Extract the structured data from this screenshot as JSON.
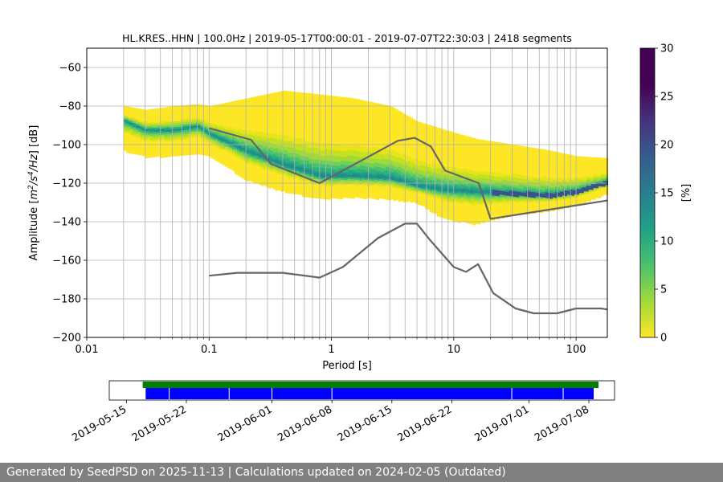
{
  "chart_data": [
    {
      "type": "heatmap",
      "title": "HL.KRES..HHN | 100.0Hz | 2019-05-17T00:00:01 - 2019-07-07T22:30:03 | 2418 segments",
      "xlabel": "Period [s]",
      "ylabel": "Amplitude [$m^2/s^4/Hz$] [dB]",
      "xscale": "log",
      "xlim": [
        0.01,
        180
      ],
      "ylim": [
        -200,
        -50
      ],
      "xticks": [
        "0.01",
        "0.1",
        "1",
        "10",
        "100"
      ],
      "yticks": [
        "−60",
        "−80",
        "−100",
        "−120",
        "−140",
        "−160",
        "−180",
        "−200"
      ],
      "grid": true,
      "colorbar": {
        "label": "[%]",
        "range": [
          0,
          30
        ],
        "ticks": [
          "0",
          "5",
          "10",
          "15",
          "20",
          "25",
          "30"
        ],
        "colormap": "viridis_r"
      },
      "density_ridge": {
        "period": [
          0.02,
          0.03,
          0.05,
          0.08,
          0.1,
          0.2,
          0.4,
          0.8,
          1.5,
          3,
          5,
          8,
          15,
          30,
          60,
          100,
          180
        ],
        "mode_db": [
          -87,
          -92,
          -92,
          -90,
          -94,
          -103,
          -110,
          -116,
          -116,
          -117,
          -121,
          -123,
          -124,
          -125,
          -126,
          -124,
          -119
        ],
        "upper_db": [
          -80,
          -82,
          -80,
          -79,
          -80,
          -76,
          -72,
          -74,
          -76,
          -80,
          -88,
          -92,
          -97,
          -100,
          -103,
          -106,
          -107
        ],
        "lower_db": [
          -103,
          -106,
          -106,
          -104,
          -106,
          -118,
          -124,
          -128,
          -127,
          -128,
          -130,
          -138,
          -141,
          -136,
          -134,
          -131,
          -125
        ]
      },
      "series": [
        {
          "name": "",
          "x": [
            0.1,
            0.22,
            0.32,
            0.8,
            3.5,
            4.8,
            6.5,
            8.5,
            16,
            20,
            180
          ],
          "y": [
            -91.5,
            -97.5,
            -110,
            -120,
            -98,
            -96.5,
            -101,
            -113.5,
            -120,
            -138.5,
            -129
          ],
          "color": "#666666"
        },
        {
          "name": "",
          "x": [
            0.1,
            0.17,
            0.4,
            0.8,
            1.24,
            2.4,
            4.0,
            5.0,
            6.3,
            10,
            12.6,
            15.8,
            21,
            32,
            45,
            70,
            100,
            160,
            180
          ],
          "y": [
            -168,
            -166.5,
            -166.5,
            -169,
            -163.5,
            -148.5,
            -141,
            -141,
            -149,
            -163.5,
            -166,
            -162,
            -177,
            -185,
            -187.5,
            -187.5,
            -185,
            -185,
            -185.5
          ],
          "color": "#666666"
        }
      ]
    },
    {
      "type": "timeline",
      "xticks": [
        "2019-05-15",
        "2019-05-22",
        "2019-06-01",
        "2019-06-08",
        "2019-06-15",
        "2019-06-22",
        "2019-07-01",
        "2019-07-08"
      ],
      "xlim": [
        "2019-05-13",
        "2019-07-11"
      ],
      "available_range": [
        "2019-05-17",
        "2019-07-08"
      ],
      "processed_range": [
        "2019-05-18",
        "2019-07-08"
      ],
      "gap_dates": [
        "2019-05-20",
        "2019-05-27",
        "2019-06-01",
        "2019-06-08",
        "2019-06-29",
        "2019-07-05"
      ],
      "available_color": "#008000",
      "processed_color": "#0000ff"
    }
  ],
  "footer": {
    "text": "Generated by SeedPSD on 2025-11-13 | Calculations updated on 2024-02-05 (Outdated)"
  }
}
